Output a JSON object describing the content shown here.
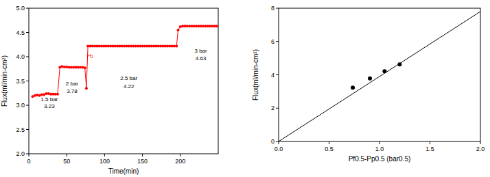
{
  "chart_data": [
    {
      "type": "line",
      "xlabel": "Time(min)",
      "ylabel": "Flux(ml/min-cm²)",
      "x": [
        5,
        8,
        11,
        14,
        17,
        20,
        23,
        26,
        29,
        32,
        35,
        38,
        41,
        44,
        47,
        50,
        53,
        56,
        59,
        62,
        65,
        68,
        71,
        74,
        76,
        78,
        81,
        84,
        87,
        90,
        93,
        96,
        99,
        102,
        105,
        108,
        111,
        114,
        117,
        120,
        123,
        126,
        129,
        132,
        135,
        138,
        141,
        144,
        147,
        150,
        153,
        156,
        159,
        162,
        165,
        168,
        171,
        174,
        177,
        180,
        183,
        186,
        189,
        192,
        195,
        197,
        200,
        203,
        206,
        209,
        212,
        215,
        218,
        221,
        224,
        227,
        230,
        233,
        236,
        239,
        242,
        245,
        248
      ],
      "values": [
        3.18,
        3.2,
        3.21,
        3.2,
        3.22,
        3.22,
        3.24,
        3.24,
        3.23,
        3.23,
        3.23,
        3.23,
        3.78,
        3.8,
        3.79,
        3.79,
        3.78,
        3.78,
        3.78,
        3.78,
        3.78,
        3.78,
        3.78,
        3.77,
        3.35,
        4.22,
        4.22,
        4.22,
        4.22,
        4.22,
        4.22,
        4.22,
        4.22,
        4.22,
        4.22,
        4.22,
        4.22,
        4.22,
        4.22,
        4.22,
        4.22,
        4.22,
        4.22,
        4.22,
        4.22,
        4.22,
        4.22,
        4.22,
        4.22,
        4.22,
        4.22,
        4.22,
        4.22,
        4.22,
        4.22,
        4.22,
        4.22,
        4.22,
        4.22,
        4.22,
        4.22,
        4.22,
        4.22,
        4.22,
        4.22,
        4.55,
        4.62,
        4.63,
        4.63,
        4.63,
        4.63,
        4.63,
        4.63,
        4.63,
        4.63,
        4.63,
        4.63,
        4.63,
        4.63,
        4.63,
        4.63,
        4.63,
        4.63
      ],
      "color": "#ff0000",
      "marker": "circle",
      "xlim": [
        0,
        250
      ],
      "xticks": [
        0,
        50,
        100,
        150,
        200
      ],
      "ylim": [
        2,
        5
      ],
      "yticks": [
        {
          "value": 2,
          "label": "2.0"
        },
        {
          "value": 2.5,
          "label": "2.5"
        },
        {
          "value": 3,
          "label": "3.0"
        },
        {
          "value": 3.5,
          "label": "3.5"
        },
        {
          "value": 4,
          "label": "4.0"
        },
        {
          "value": 4.5,
          "label": "4.5"
        },
        {
          "value": 5,
          "label": "5.0"
        }
      ],
      "grid": false,
      "annotations": [
        {
          "text": "1.5 bar",
          "x": 27,
          "y": 3.08
        },
        {
          "text": "3.23",
          "x": 27,
          "y": 2.94
        },
        {
          "text": "2 bar",
          "x": 57,
          "y": 3.41
        },
        {
          "text": "3.78",
          "x": 57,
          "y": 3.25
        },
        {
          "text": "H₂",
          "x": 81,
          "y": 3.99,
          "color": "#ff0000"
        },
        {
          "text": "2.5 bar",
          "x": 132,
          "y": 3.52
        },
        {
          "text": "4.22",
          "x": 132,
          "y": 3.35
        },
        {
          "text": "3 bar",
          "x": 227,
          "y": 4.08
        },
        {
          "text": "4.63",
          "x": 227,
          "y": 3.93
        }
      ]
    },
    {
      "type": "scatter",
      "xlabel": "Pf0.5-Pp0.5 (bar0.5)",
      "ylabel": "Flux(ml/min-cm²)",
      "series": [
        {
          "type": "scatter",
          "x": [
            0.735,
            0.905,
            1.05,
            1.2
          ],
          "values": [
            3.23,
            3.78,
            4.22,
            4.63
          ],
          "color": "#000000",
          "marker": "circle"
        },
        {
          "type": "line",
          "x": [
            0,
            2
          ],
          "values": [
            0,
            7.8
          ],
          "color": "#000000",
          "line_style": "solid"
        }
      ],
      "xlim": [
        0,
        2
      ],
      "xticks": [
        {
          "value": 0,
          "label": "0.0"
        },
        0.5,
        {
          "value": 1,
          "label": "1.0"
        },
        1.5,
        {
          "value": 2,
          "label": "2.0"
        }
      ],
      "ylim": [
        0,
        8
      ],
      "yticks": [
        0,
        2,
        4,
        6,
        8
      ],
      "grid": false
    }
  ]
}
